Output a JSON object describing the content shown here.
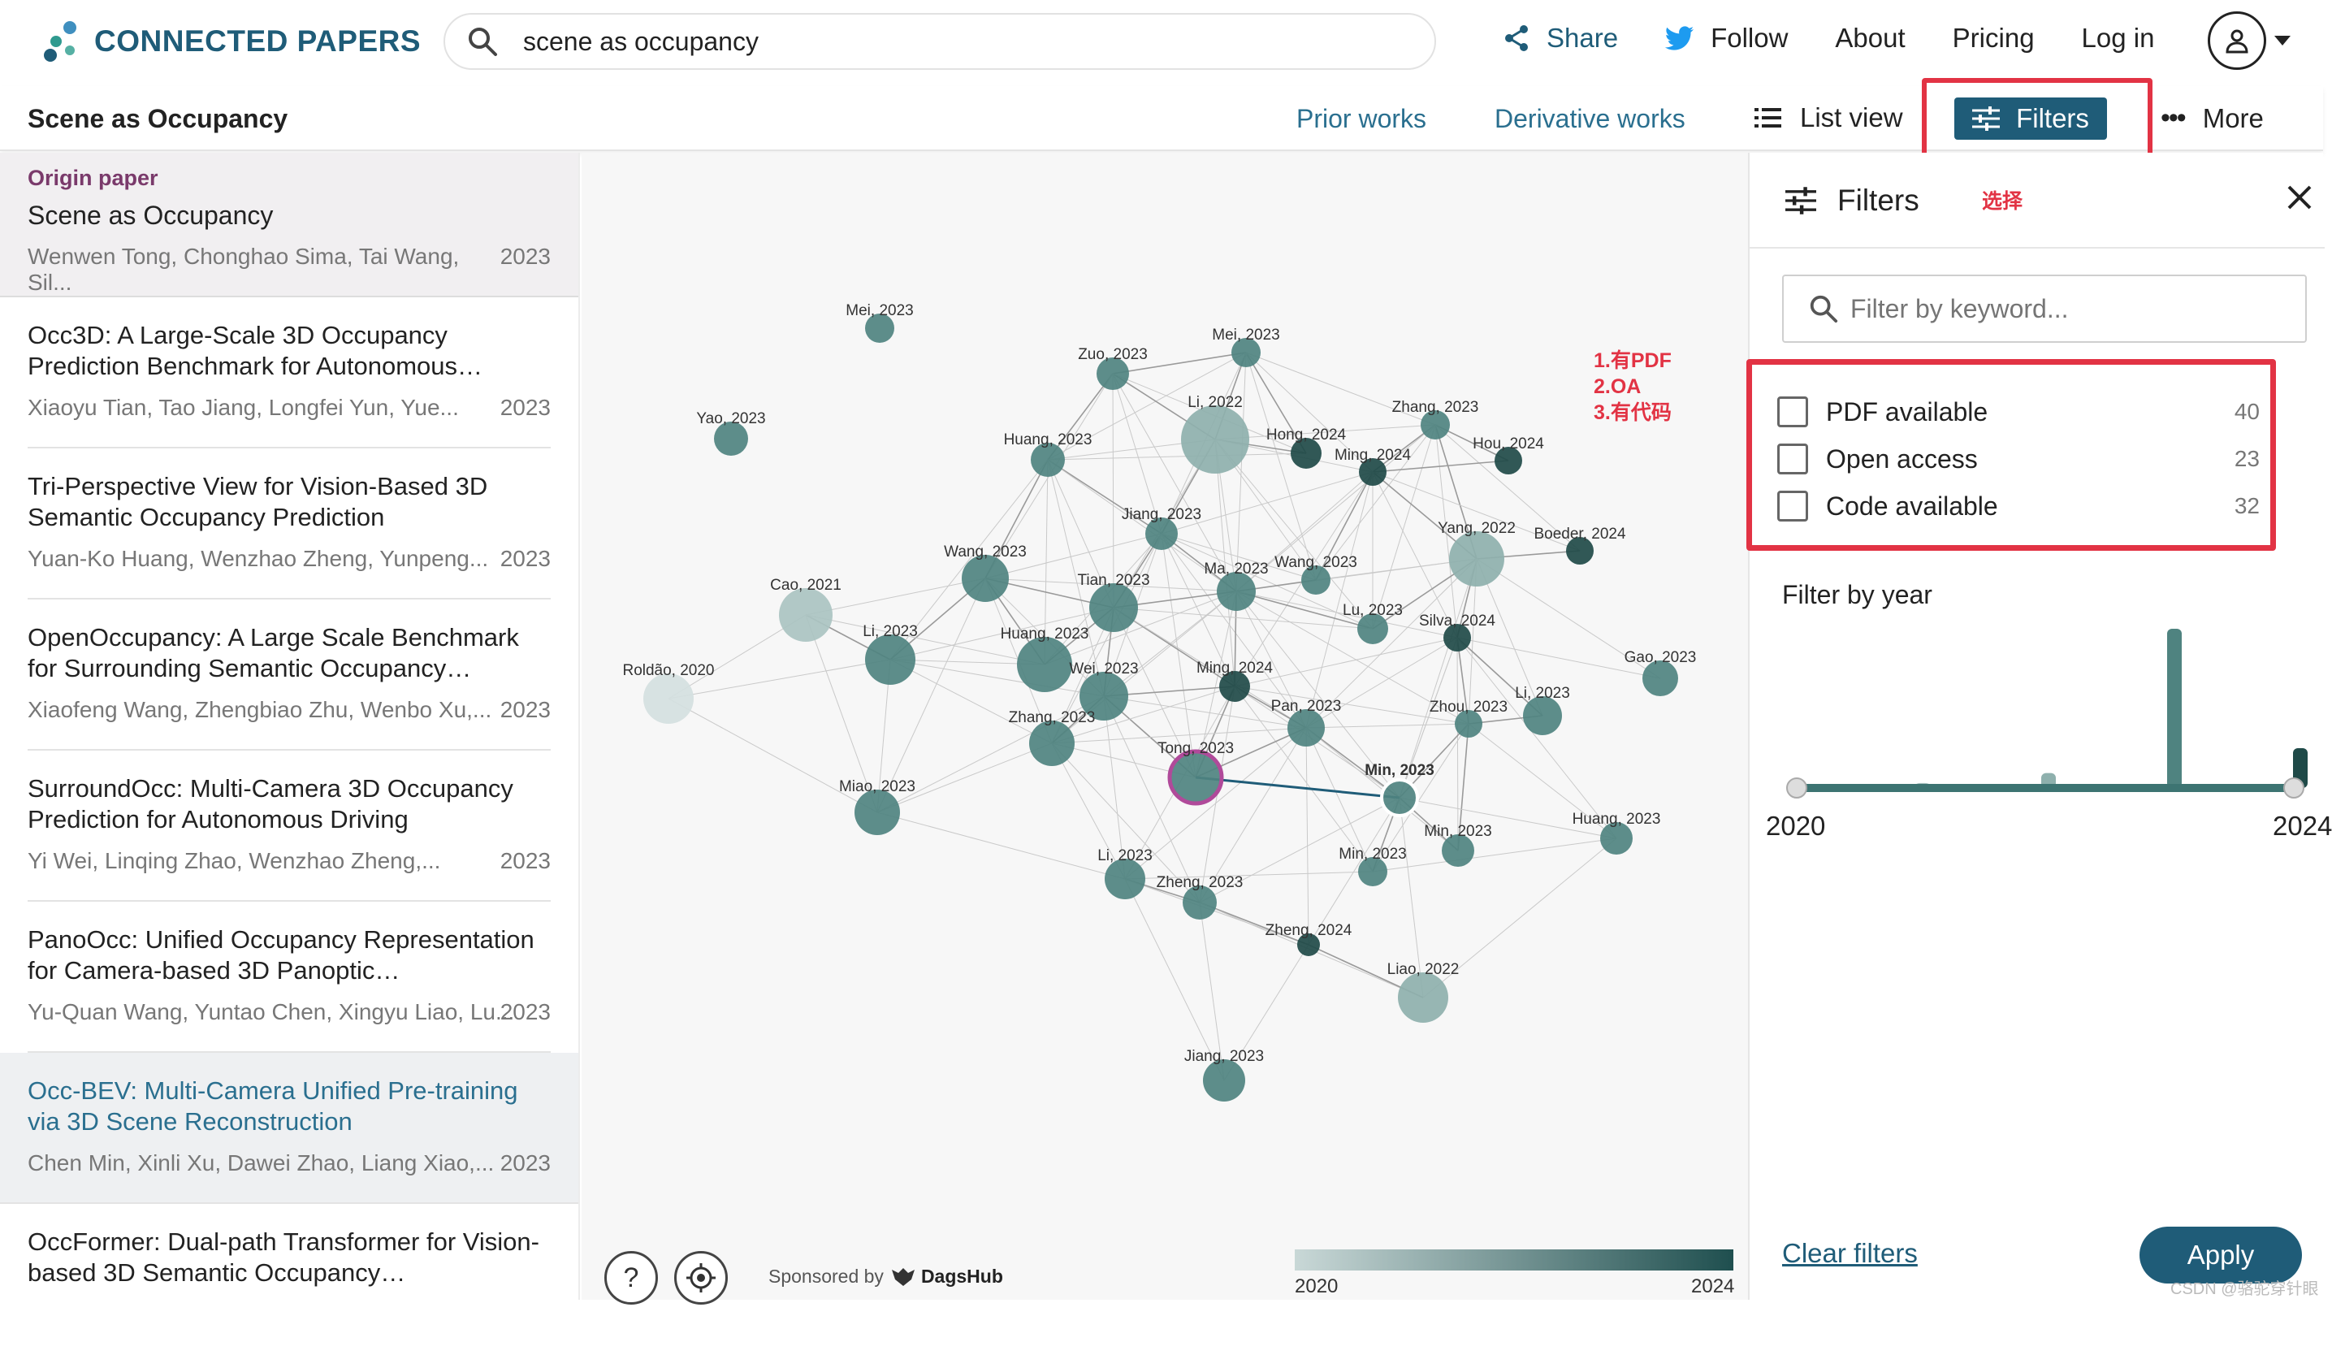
{
  "header": {
    "logo_text": "CONNECTED PAPERS",
    "search_value": "scene as occupancy",
    "nav": {
      "share": "Share",
      "follow": "Follow",
      "about": "About",
      "pricing": "Pricing",
      "login": "Log in"
    }
  },
  "subbar": {
    "paper_title": "Scene as Occupancy",
    "prior_works": "Prior works",
    "derivative_works": "Derivative works",
    "list_view": "List view",
    "filters": "Filters",
    "more": "More"
  },
  "origin": {
    "tag": "Origin paper",
    "title": "Scene as Occupancy",
    "authors": "Wenwen Tong, Chonghao Sima, Tai Wang, Sil...",
    "year": "2023"
  },
  "papers": [
    {
      "title": "Occ3D: A Large-Scale 3D Occupancy Prediction Benchmark for Autonomous…",
      "authors": "Xiaoyu Tian, Tao Jiang, Longfei Yun, Yue...",
      "year": "2023"
    },
    {
      "title": "Tri-Perspective View for Vision-Based 3D Semantic Occupancy Prediction",
      "authors": "Yuan-Ko Huang, Wenzhao Zheng, Yunpeng...",
      "year": "2023"
    },
    {
      "title": "OpenOccupancy: A Large Scale Benchmark for Surrounding Semantic Occupancy…",
      "authors": "Xiaofeng Wang, Zhengbiao Zhu, Wenbo Xu,...",
      "year": "2023"
    },
    {
      "title": "SurroundOcc: Multi-Camera 3D Occupancy Prediction for Autonomous Driving",
      "authors": "Yi Wei, Linqing Zhao, Wenzhao Zheng,...",
      "year": "2023"
    },
    {
      "title": "PanoOcc: Unified Occupancy Representation for Camera-based 3D Panoptic…",
      "authors": "Yu-Quan Wang, Yuntao Chen, Xingyu Liao, Lu...",
      "year": "2023"
    },
    {
      "title": "Occ-BEV: Multi-Camera Unified Pre-training via 3D Scene Reconstruction",
      "authors": "Chen Min, Xinli Xu, Dawei Zhao, Liang Xiao,...",
      "year": "2023"
    },
    {
      "title": "OccFormer: Dual-path Transformer for Vision-based 3D Semantic Occupancy…",
      "authors": "",
      "year": ""
    }
  ],
  "annotation": {
    "line1": "1.有PDF",
    "line2": "2.OA",
    "line3": "3.有代码",
    "select": "选择"
  },
  "graph": {
    "nodes": [
      {
        "label": "Mei, 2023",
        "year": 2023
      },
      {
        "label": "Mei, 2023",
        "year": 2023
      },
      {
        "label": "Zuo, 2023",
        "year": 2023
      },
      {
        "label": "Yao, 2023",
        "year": 2023
      },
      {
        "label": "Huang, 2023",
        "year": 2023
      },
      {
        "label": "Li, 2022",
        "year": 2022
      },
      {
        "label": "Hong, 2024",
        "year": 2024
      },
      {
        "label": "Zhang, 2023",
        "year": 2023
      },
      {
        "label": "Ming, 2024",
        "year": 2024
      },
      {
        "label": "Hou, 2024",
        "year": 2024
      },
      {
        "label": "Jiang, 2023",
        "year": 2023
      },
      {
        "label": "Yang, 2022",
        "year": 2022
      },
      {
        "label": "Boeder, 2024",
        "year": 2024
      },
      {
        "label": "Wang, 2023",
        "year": 2023
      },
      {
        "label": "Ma, 2023",
        "year": 2023
      },
      {
        "label": "Wang, 2023",
        "year": 2023
      },
      {
        "label": "Tian, 2023",
        "year": 2023
      },
      {
        "label": "Cao, 2021",
        "year": 2021
      },
      {
        "label": "Lu, 2023",
        "year": 2023
      },
      {
        "label": "Silva, 2024",
        "year": 2024
      },
      {
        "label": "Li, 2023",
        "year": 2023
      },
      {
        "label": "Huang, 2023",
        "year": 2023
      },
      {
        "label": "Wei, 2023",
        "year": 2023
      },
      {
        "label": "Ming, 2024",
        "year": 2024
      },
      {
        "label": "Gao, 2023",
        "year": 2023
      },
      {
        "label": "Roldão, 2020",
        "year": 2020
      },
      {
        "label": "Zhou, 2023",
        "year": 2023
      },
      {
        "label": "Li, 2023",
        "year": 2023
      },
      {
        "label": "Pan, 2023",
        "year": 2023
      },
      {
        "label": "Zhang, 2023",
        "year": 2023
      },
      {
        "label": "Tong, 2023",
        "year": 2023
      },
      {
        "label": "Min, 2023",
        "year": 2023
      },
      {
        "label": "Miao, 2023",
        "year": 2023
      },
      {
        "label": "Min, 2023",
        "year": 2023
      },
      {
        "label": "Huang, 2023",
        "year": 2023
      },
      {
        "label": "Li, 2023",
        "year": 2023
      },
      {
        "label": "Min, 2023",
        "year": 2023
      },
      {
        "label": "Zheng, 2023",
        "year": 2023
      },
      {
        "label": "Zheng, 2024",
        "year": 2024
      },
      {
        "label": "Liao, 2022",
        "year": 2022
      },
      {
        "label": "Jiang, 2023",
        "year": 2023
      }
    ],
    "sponsored_by": "Sponsored by",
    "sponsor_name": "DagsHub",
    "year_start": "2020",
    "year_end": "2024",
    "help": "?"
  },
  "filters": {
    "title": "Filters",
    "keyword_placeholder": "Filter by keyword...",
    "options": [
      {
        "label": "PDF available",
        "count": "40"
      },
      {
        "label": "Open access",
        "count": "23"
      },
      {
        "label": "Code available",
        "count": "32"
      }
    ],
    "year_title": "Filter by year",
    "year_min": "2020",
    "year_max": "2024",
    "histogram": [
      {
        "year": 2020,
        "count": 1
      },
      {
        "year": 2021,
        "count": 1
      },
      {
        "year": 2022,
        "count": 3
      },
      {
        "year": 2023,
        "count": 32
      },
      {
        "year": 2024,
        "count": 8
      }
    ],
    "clear": "Clear filters",
    "apply": "Apply"
  },
  "watermark": "CSDN @骆驼穿针眼",
  "colors": {
    "brand": "#1f5c78",
    "highlight": "#e23344",
    "origin_tag": "#7a3a6b"
  }
}
